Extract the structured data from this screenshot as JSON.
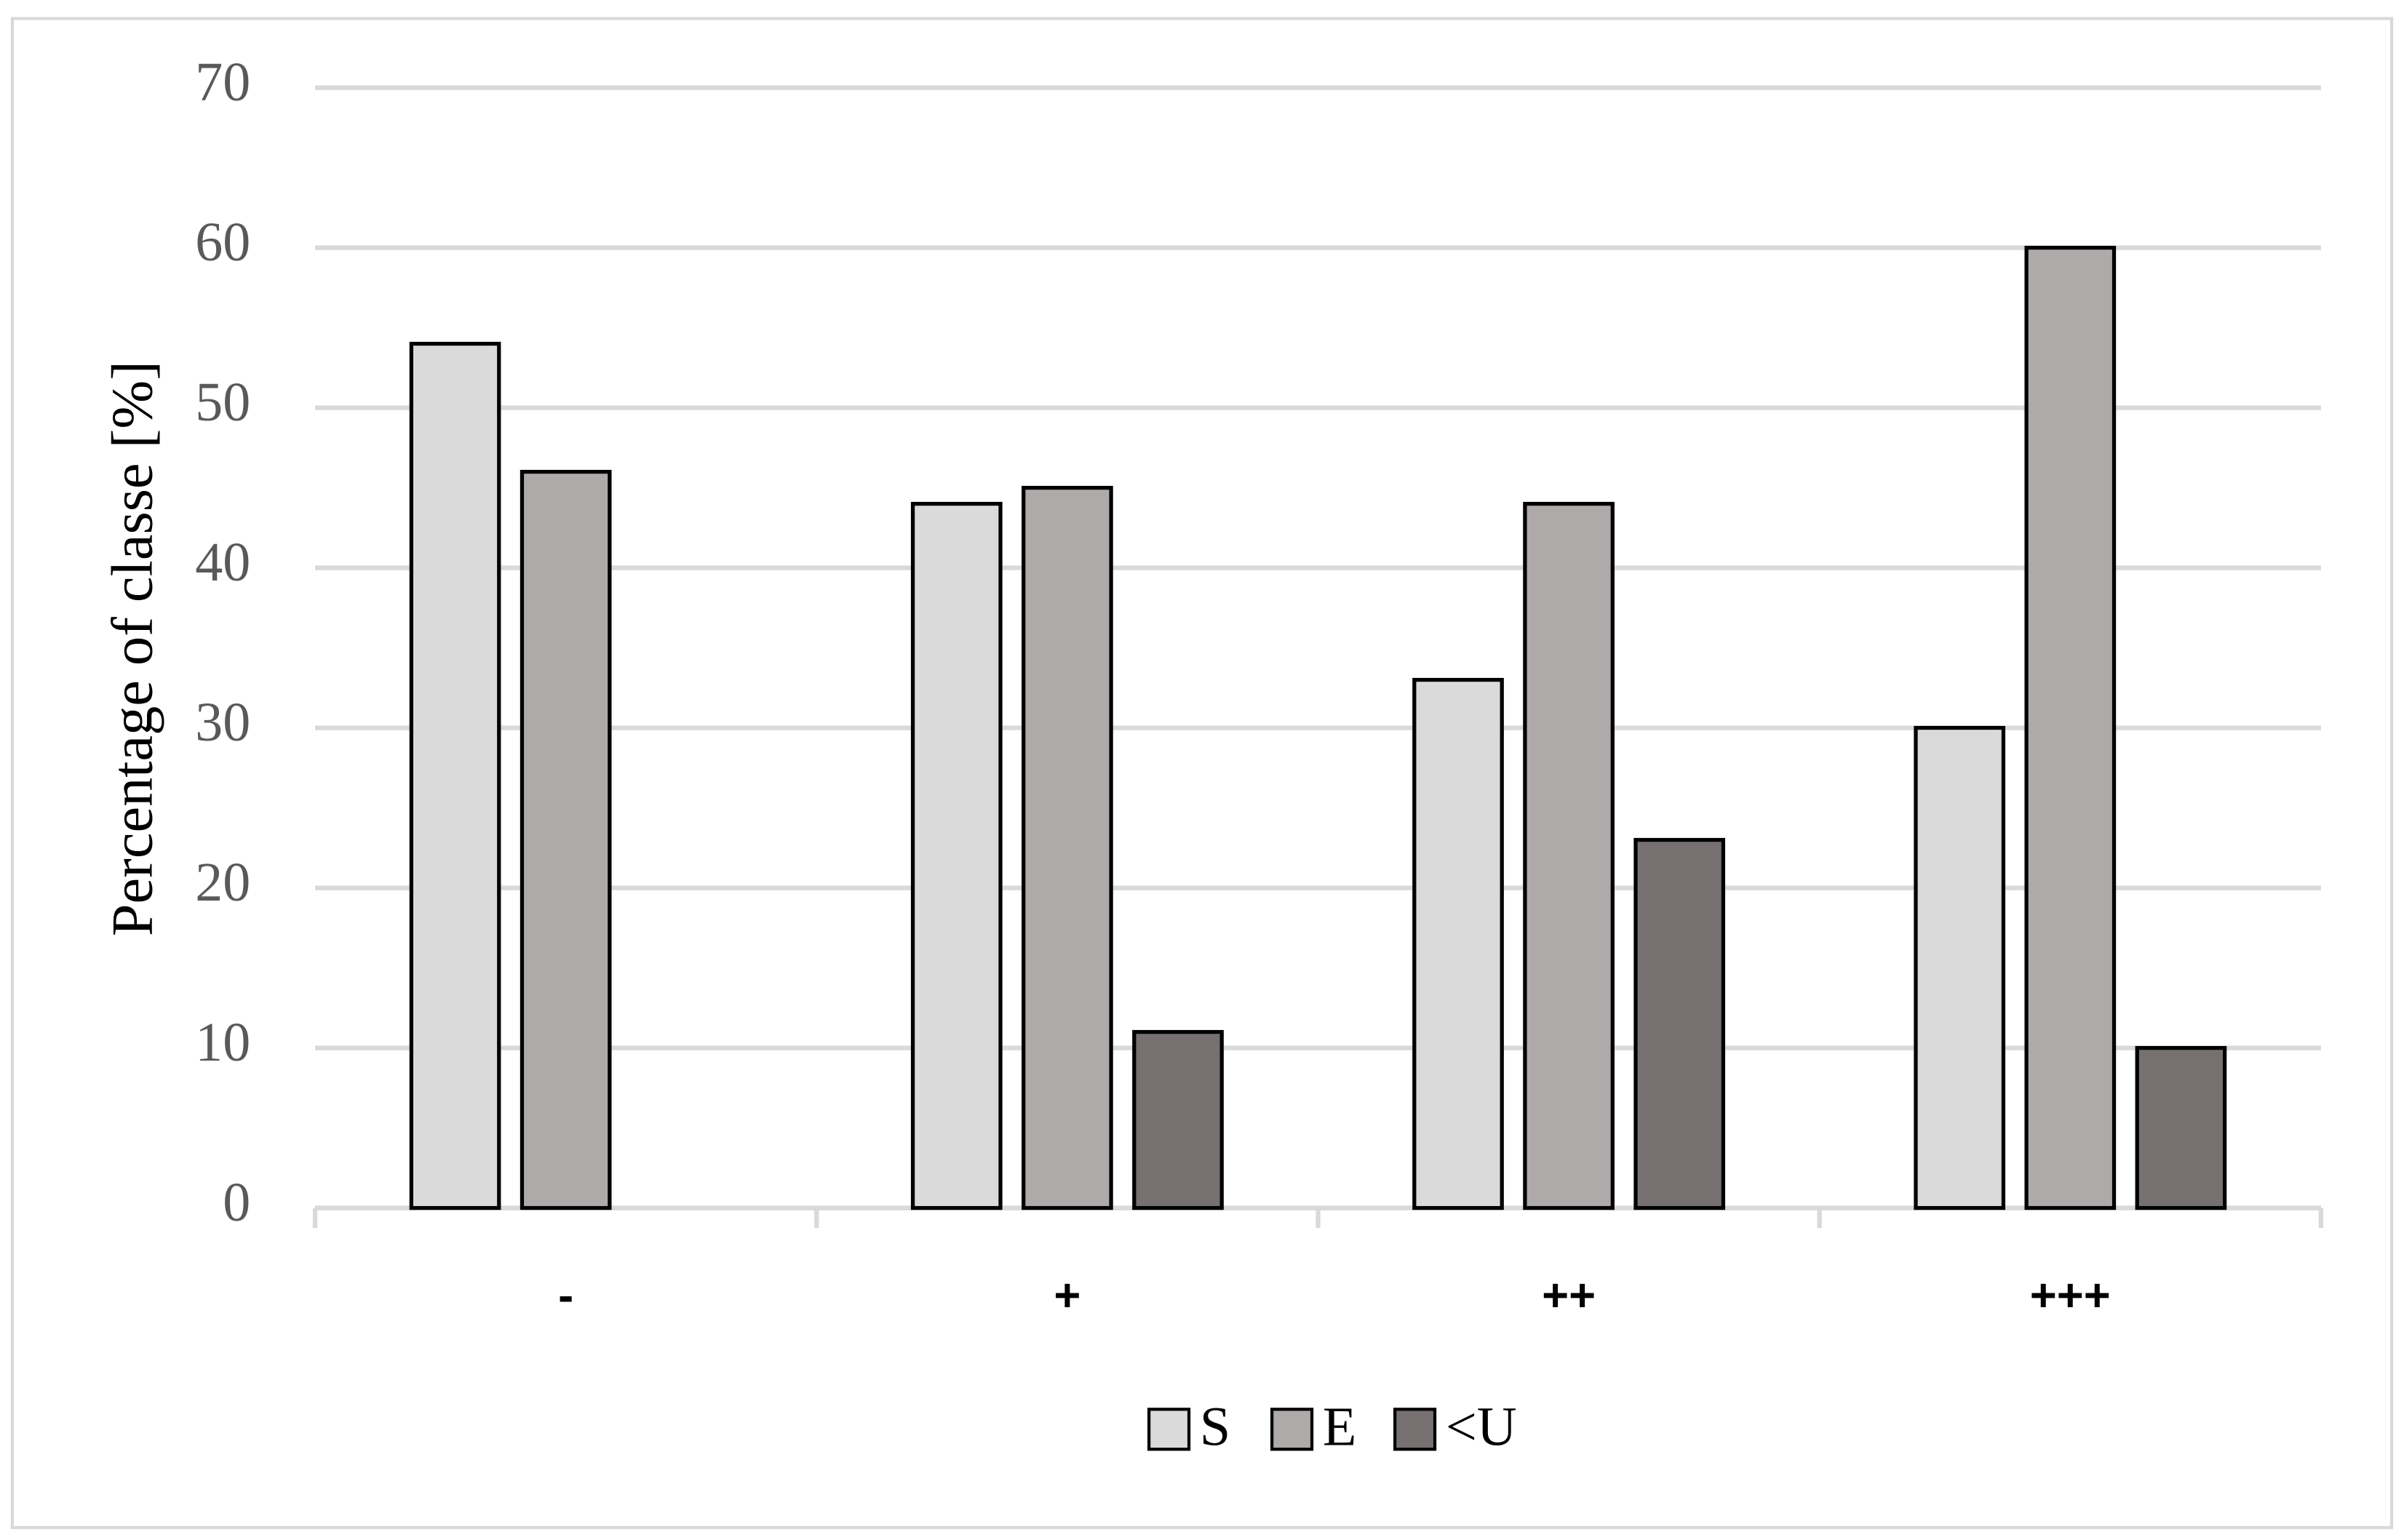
{
  "chart_data": {
    "type": "bar",
    "y_label": "Percentage of classe [%]",
    "categories": [
      "-",
      "+",
      "++",
      "+++"
    ],
    "series": [
      {
        "name": "S",
        "color": "#dadada",
        "values": [
          54,
          44,
          33,
          30
        ]
      },
      {
        "name": "E",
        "color": "#aeaaa9",
        "values": [
          46,
          45,
          44,
          60
        ]
      },
      {
        "name": "<U",
        "color": "#767170",
        "values": [
          null,
          11,
          23,
          10
        ]
      }
    ],
    "ylim": [
      0,
      70
    ],
    "yticks": [
      0,
      10,
      20,
      30,
      40,
      50,
      60,
      70
    ],
    "grid": true,
    "legend": "bottom"
  }
}
